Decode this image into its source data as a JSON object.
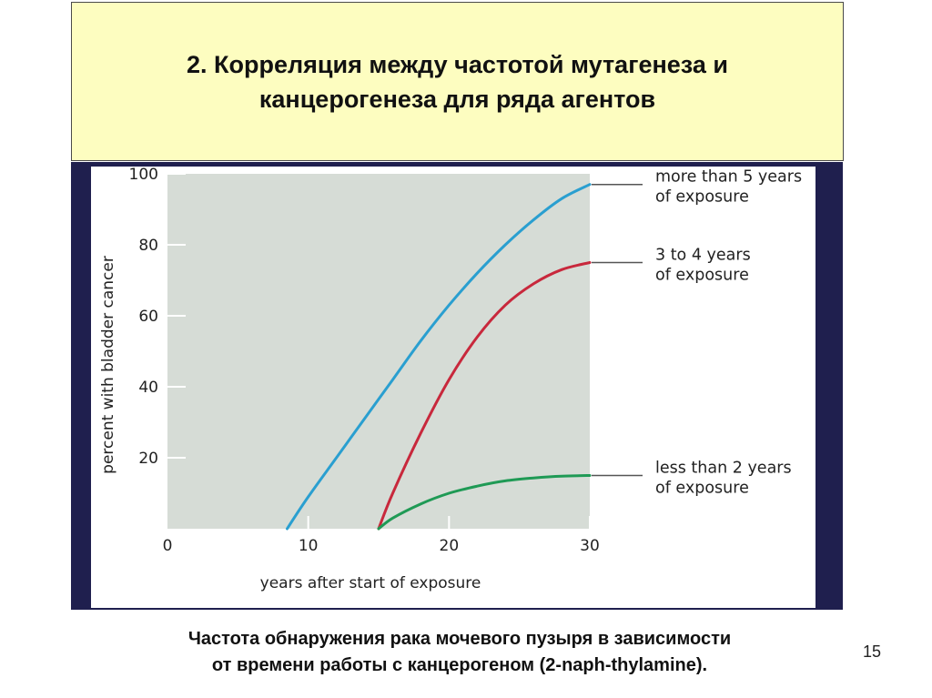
{
  "slide": {
    "title_line1": "2. Корреляция между частотой мутагенеза и",
    "title_line2": "канцерогенеза для ряда агентов",
    "caption_line1": "Частота обнаружения рака мочевого пузыря в зависимости",
    "caption_line2": "от времени работы с канцерогеном (2-naph-thylamine).",
    "page_number": "15",
    "colors": {
      "title_bg": "#fdfdc0",
      "band": "#1f1f4e",
      "plot_bg": "#d6dcd6"
    }
  },
  "chart_data": {
    "type": "line",
    "xlabel": "years after start of exposure",
    "ylabel": "percent with bladder cancer",
    "xlim": [
      0,
      30
    ],
    "ylim": [
      0,
      100
    ],
    "x_ticks": [
      0,
      10,
      20,
      30
    ],
    "y_ticks": [
      20,
      40,
      60,
      80,
      100
    ],
    "grid": false,
    "series": [
      {
        "label_line1": "more than 5 years",
        "label_line2": "of exposure",
        "color": "#2a9fd0",
        "x": [
          8.5,
          10,
          12,
          14,
          16,
          18,
          20,
          22,
          24,
          26,
          28,
          30
        ],
        "y": [
          0,
          9,
          20,
          31,
          42,
          53,
          63,
          72,
          80,
          87,
          93,
          97
        ]
      },
      {
        "label_line1": "3 to 4 years",
        "label_line2": "of exposure",
        "color": "#c8283c",
        "x": [
          15,
          16,
          18,
          20,
          22,
          24,
          26,
          28,
          30
        ],
        "y": [
          0,
          10,
          27,
          42,
          54,
          63,
          69,
          73,
          75
        ]
      },
      {
        "label_line1": "less than 2 years",
        "label_line2": "of exposure",
        "color": "#1f9a55",
        "x": [
          15,
          16,
          18,
          20,
          22,
          24,
          26,
          28,
          30
        ],
        "y": [
          0,
          3,
          7,
          10,
          12,
          13.5,
          14.3,
          14.8,
          15
        ]
      }
    ]
  }
}
